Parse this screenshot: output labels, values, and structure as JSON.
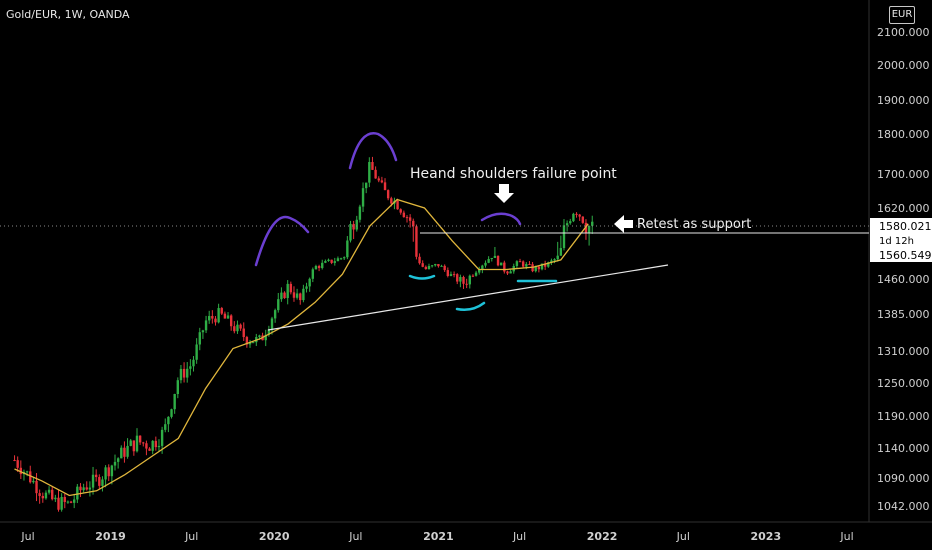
{
  "chart_data": {
    "type": "candlestick",
    "title": "Gold/EUR, 1W, OANDA",
    "currency": "EUR",
    "y_ticks": [
      2100,
      2000,
      1900,
      1800,
      1700,
      1620,
      1580.021,
      1560.549,
      1460,
      1385,
      1310,
      1250,
      1190,
      1140,
      1090,
      1042
    ],
    "y_tick_labels": [
      "2100.000",
      "2000.000",
      "1900.000",
      "1800.000",
      "1700.000",
      "1620.000",
      "1580.021",
      "1560.549",
      "1460.000",
      "1385.000",
      "1310.000",
      "1250.000",
      "1190.000",
      "1140.000",
      "1090.000",
      "1042.000"
    ],
    "x_ticks": [
      {
        "label": "Jul",
        "date": "2018-07"
      },
      {
        "label": "2019",
        "date": "2019-01"
      },
      {
        "label": "Jul",
        "date": "2019-07"
      },
      {
        "label": "2020",
        "date": "2020-01"
      },
      {
        "label": "Jul",
        "date": "2020-07"
      },
      {
        "label": "2021",
        "date": "2021-01"
      },
      {
        "label": "Jul",
        "date": "2021-07"
      },
      {
        "label": "2022",
        "date": "2022-01"
      },
      {
        "label": "Jul",
        "date": "2022-07"
      },
      {
        "label": "2023",
        "date": "2023-01"
      },
      {
        "label": "Jul",
        "date": "2023-07"
      }
    ],
    "price_series": {
      "x": [
        "2018-06-01",
        "2018-07-01",
        "2018-08-01",
        "2018-09-01",
        "2018-10-01",
        "2018-11-01",
        "2018-12-01",
        "2019-01-01",
        "2019-02-01",
        "2019-03-01",
        "2019-04-01",
        "2019-05-01",
        "2019-06-01",
        "2019-07-01",
        "2019-08-01",
        "2019-09-01",
        "2019-10-01",
        "2019-11-01",
        "2019-12-01",
        "2020-01-01",
        "2020-02-01",
        "2020-03-01",
        "2020-04-01",
        "2020-05-01",
        "2020-06-01",
        "2020-07-01",
        "2020-08-01",
        "2020-09-01",
        "2020-10-01",
        "2020-11-01",
        "2020-12-01",
        "2021-01-01",
        "2021-02-01",
        "2021-03-01",
        "2021-04-01",
        "2021-05-01",
        "2021-06-01",
        "2021-07-01",
        "2021-08-01",
        "2021-09-01",
        "2021-10-01",
        "2021-11-01",
        "2021-12-01"
      ],
      "y": [
        1120,
        1095,
        1065,
        1048,
        1045,
        1075,
        1085,
        1110,
        1135,
        1150,
        1145,
        1165,
        1260,
        1285,
        1370,
        1385,
        1360,
        1335,
        1330,
        1390,
        1445,
        1410,
        1510,
        1530,
        1550,
        1600,
        1720,
        1660,
        1630,
        1590,
        1500,
        1520,
        1470,
        1450,
        1510,
        1560,
        1490,
        1530,
        1500,
        1520,
        1560,
        1620,
        1580
      ]
    },
    "moving_average": {
      "x": [
        "2018-06-01",
        "2018-08-01",
        "2018-10-01",
        "2018-12-01",
        "2019-02-01",
        "2019-04-01",
        "2019-06-01",
        "2019-08-01",
        "2019-10-01",
        "2019-12-01",
        "2020-02-01",
        "2020-04-01",
        "2020-06-01",
        "2020-08-01",
        "2020-10-01",
        "2020-12-01",
        "2021-02-01",
        "2021-04-01",
        "2021-06-01",
        "2021-08-01",
        "2021-10-01",
        "2021-12-01"
      ],
      "y": [
        1105,
        1085,
        1060,
        1068,
        1095,
        1125,
        1155,
        1240,
        1315,
        1335,
        1365,
        1410,
        1480,
        1580,
        1640,
        1620,
        1570,
        1500,
        1500,
        1510,
        1540,
        1585
      ]
    },
    "current_price": 1580.021,
    "price_label": "1580.021",
    "countdown": "1d 12h",
    "level_label": "1560.549",
    "annotations": [
      {
        "text": "Heand shoulders failure point"
      },
      {
        "text": "Retest as support"
      }
    ]
  }
}
